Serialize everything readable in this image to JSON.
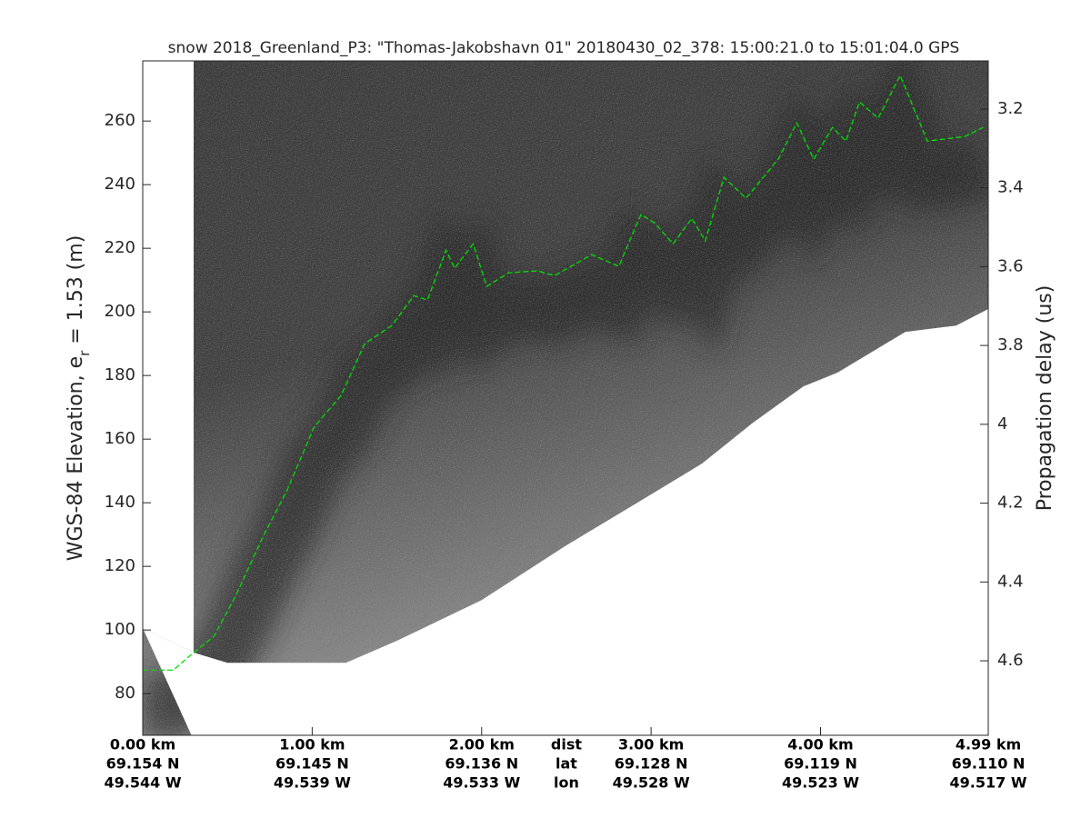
{
  "chart_data": {
    "type": "echogram",
    "title": "snow 2018_Greenland_P3: \"Thomas-Jakobshavn 01\"  20180430_02_378: 15:00:21.0 to 15:01:04.0 GPS",
    "ylabel": {
      "text": "WGS-84 Elevation, e",
      "subscript": "r",
      "suffix": " = 1.53 (m)"
    },
    "y2label": "Propagation delay (us)",
    "xlim": [
      0,
      4.99
    ],
    "xticks": [
      {
        "value": 0,
        "label": "0.00 km"
      },
      {
        "value": 1,
        "label": "1.00 km"
      },
      {
        "value": 2,
        "label": "2.00 km"
      },
      {
        "value": 3,
        "label": "3.00 km"
      },
      {
        "value": 4,
        "label": "4.00 km"
      },
      {
        "value": 4.99,
        "label": "4.99 km"
      }
    ],
    "xtick_lat": [
      "69.154 N",
      "69.145 N",
      "69.136 N",
      "69.128 N",
      "69.119 N",
      "69.110 N"
    ],
    "xtick_lon": [
      "49.544 W",
      "49.539 W",
      "49.533 W",
      "49.528 W",
      "49.523 W",
      "49.517 W"
    ],
    "xrow_names": [
      "dist",
      "lat",
      "lon"
    ],
    "ylim": [
      66.9,
      278.9
    ],
    "yticks": [
      80,
      100,
      120,
      140,
      160,
      180,
      200,
      220,
      240,
      260
    ],
    "y2lim": [
      4.789,
      3.078
    ],
    "y2ticks": [
      3.2,
      3.4,
      3.6,
      3.8,
      4,
      4.2,
      4.4,
      4.6
    ],
    "surface": {
      "color": "#00e000",
      "x": [
        0,
        0.18,
        0.3,
        0.42,
        0.55,
        0.71,
        0.85,
        1.01,
        1.17,
        1.31,
        1.47,
        1.6,
        1.68,
        1.79,
        1.84,
        1.95,
        2.03,
        2.16,
        2.33,
        2.43,
        2.65,
        2.81,
        2.94,
        3.02,
        3.13,
        3.24,
        3.32,
        3.43,
        3.56,
        3.75,
        3.86,
        3.96,
        4.07,
        4.15,
        4.23,
        4.34,
        4.47,
        4.63,
        4.85,
        4.96
      ],
      "y": [
        87.4,
        87.4,
        92.9,
        98,
        110.9,
        129.4,
        143.7,
        163.7,
        173.7,
        190,
        195.7,
        205.1,
        203.7,
        219.4,
        213.7,
        221.4,
        208,
        212.3,
        212.9,
        211.4,
        218,
        214.3,
        230.6,
        228,
        221.4,
        229.4,
        222.3,
        242.3,
        235.7,
        248,
        259.4,
        248,
        258,
        253.7,
        266,
        260.9,
        274.3,
        253.7,
        255.1,
        258
      ]
    },
    "data_bottom": {
      "x": [
        0,
        0.3,
        0.5,
        1.2,
        1.5,
        2.0,
        2.5,
        2.9,
        3.3,
        3.6,
        3.9,
        4.1,
        4.5,
        4.8,
        4.99
      ],
      "y": [
        100.6,
        92.9,
        89.7,
        89.7,
        96.6,
        109.4,
        126.6,
        139.4,
        152.3,
        165.1,
        176.6,
        180.9,
        193.7,
        195.7,
        200.9
      ]
    },
    "gap_end": 0.3
  }
}
